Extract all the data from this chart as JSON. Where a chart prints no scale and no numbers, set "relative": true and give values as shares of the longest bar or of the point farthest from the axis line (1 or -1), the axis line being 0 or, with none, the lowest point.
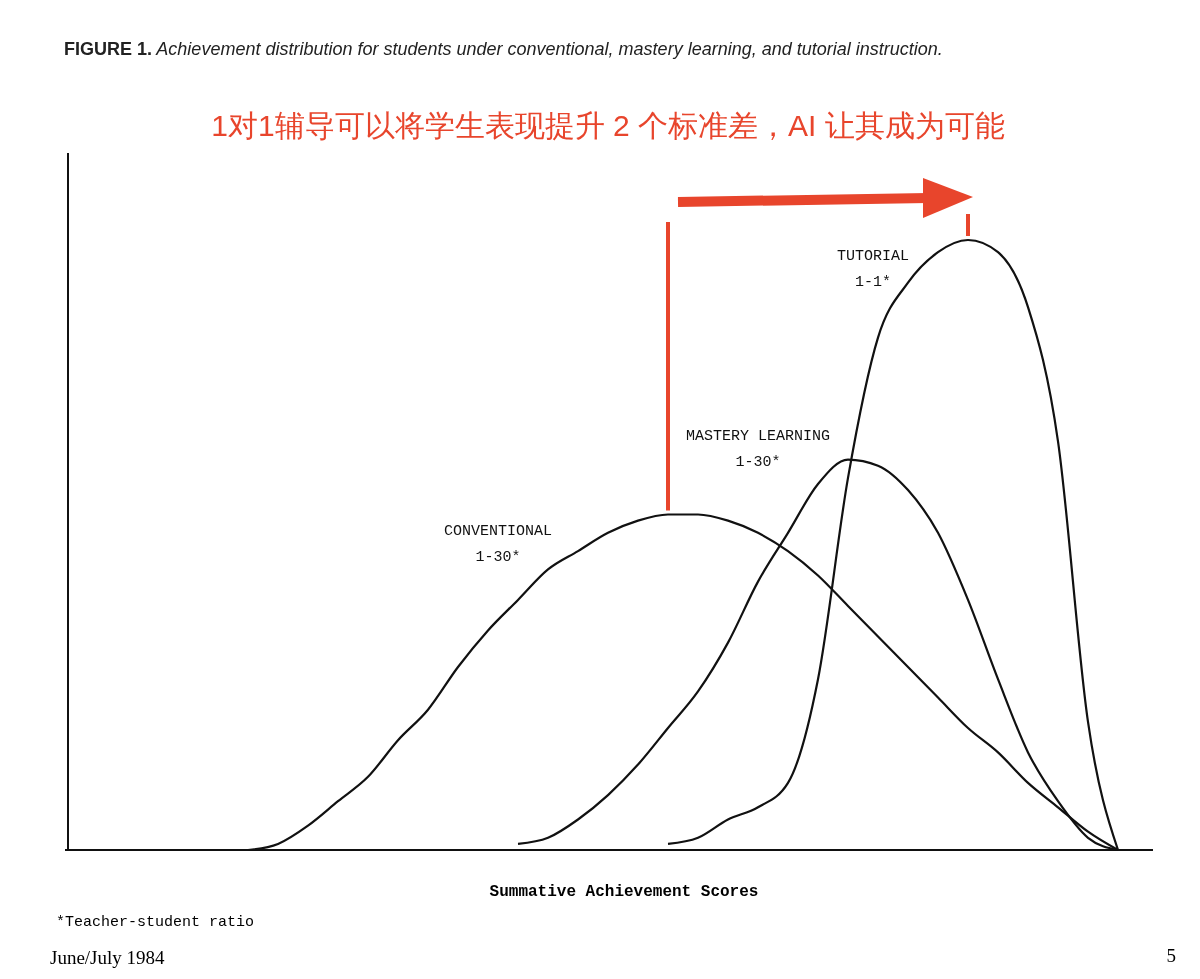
{
  "chart_data": {
    "type": "line",
    "relative": true,
    "title": "FIGURE 1. Achievement distribution for students under conventional, mastery learning, and tutorial instruction.",
    "subtitle": "1对1辅导可以将学生表现提升 2 个标准差，AI 让其成为可能",
    "xlabel": "Summative Achievement Scores",
    "categories": [
      null,
      null,
      null,
      null,
      null,
      null,
      null,
      null,
      null,
      null,
      null,
      null,
      null,
      null,
      null,
      null,
      null,
      null,
      null,
      null,
      null,
      null,
      null,
      null,
      null,
      null,
      null,
      null,
      null,
      null,
      null,
      null,
      null,
      null,
      null,
      null,
      null
    ],
    "series": [
      {
        "name": "CONVENTIONAL 1-30*",
        "color": "#111111",
        "values": [
          null,
          null,
          null,
          null,
          null,
          null,
          0,
          0.01,
          0.04,
          0.08,
          0.12,
          0.18,
          0.23,
          0.3,
          0.36,
          0.41,
          0.46,
          0.49,
          0.52,
          0.54,
          0.55,
          0.55,
          0.54,
          0.52,
          0.49,
          0.45,
          0.4,
          0.35,
          0.3,
          0.25,
          0.2,
          0.16,
          0.11,
          0.07,
          0.03,
          0,
          null
        ]
      },
      {
        "name": "MASTERY LEARNING 1-30*",
        "color": "#111111",
        "values": [
          null,
          null,
          null,
          null,
          null,
          null,
          null,
          null,
          null,
          null,
          null,
          null,
          null,
          null,
          null,
          0.01,
          0.02,
          0.05,
          0.09,
          0.14,
          0.2,
          0.26,
          0.34,
          0.44,
          0.52,
          0.6,
          0.64,
          0.63,
          0.59,
          0.52,
          0.41,
          0.28,
          0.16,
          0.08,
          0.02,
          0,
          null
        ]
      },
      {
        "name": "TUTORIAL 1-1*",
        "color": "#111111",
        "values": [
          null,
          null,
          null,
          null,
          null,
          null,
          null,
          null,
          null,
          null,
          null,
          null,
          null,
          null,
          null,
          null,
          null,
          null,
          null,
          null,
          0.01,
          0.02,
          0.05,
          0.07,
          0.11,
          0.28,
          0.61,
          0.84,
          0.93,
          0.98,
          1,
          0.98,
          0.89,
          0.67,
          0.21,
          0,
          null
        ]
      }
    ],
    "annotations": [
      "*Teacher-student ratio",
      "June/July 1984",
      "5"
    ],
    "marker": "none",
    "line_style": "solid"
  }
}
